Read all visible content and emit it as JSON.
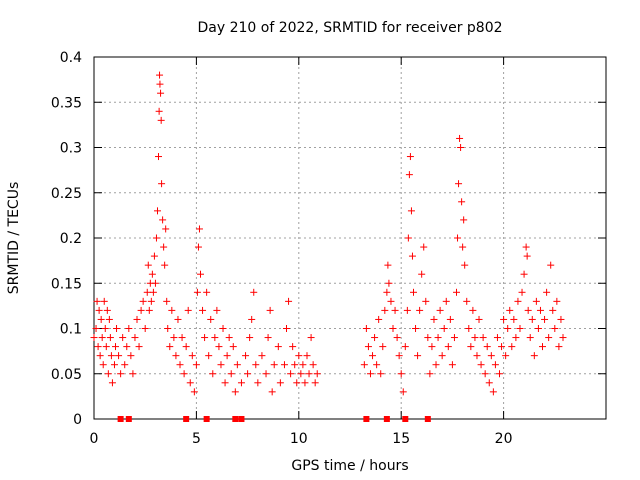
{
  "chart_data": {
    "type": "scatter",
    "title": "Day 210 of 2022, SRMTID for receiver p802",
    "xlabel": "GPS time / hours",
    "ylabel": "SRMTID / TECUs",
    "xlim": [
      0,
      25
    ],
    "ylim": [
      0,
      0.4
    ],
    "grid": true,
    "x_ticks": [
      0,
      5,
      10,
      15,
      20
    ],
    "y_ticks": [
      0,
      0.05,
      0.1,
      0.15,
      0.2,
      0.25,
      0.3,
      0.35,
      0.4
    ],
    "x_tick_labels": [
      "0",
      "5",
      "10",
      "15",
      "20"
    ],
    "y_tick_labels": [
      "0",
      "0.05",
      "0.1",
      "0.15",
      "0.2",
      "0.25",
      "0.3",
      "0.35",
      "0.4"
    ],
    "marker": "+",
    "color": "#ff0000",
    "zero_markers": [
      1.3,
      1.7,
      4.5,
      5.5,
      6.9,
      7.2,
      13.3,
      14.3,
      15.2,
      16.3
    ],
    "series": [
      {
        "name": "SRMTID",
        "points": [
          [
            0.0,
            0.09
          ],
          [
            0.1,
            0.1
          ],
          [
            0.15,
            0.13
          ],
          [
            0.2,
            0.08
          ],
          [
            0.25,
            0.12
          ],
          [
            0.3,
            0.07
          ],
          [
            0.35,
            0.11
          ],
          [
            0.4,
            0.09
          ],
          [
            0.45,
            0.06
          ],
          [
            0.5,
            0.13
          ],
          [
            0.55,
            0.1
          ],
          [
            0.6,
            0.08
          ],
          [
            0.65,
            0.12
          ],
          [
            0.7,
            0.05
          ],
          [
            0.75,
            0.11
          ],
          [
            0.8,
            0.09
          ],
          [
            0.85,
            0.07
          ],
          [
            0.9,
            0.04
          ],
          [
            1.0,
            0.06
          ],
          [
            1.05,
            0.08
          ],
          [
            1.1,
            0.1
          ],
          [
            1.2,
            0.07
          ],
          [
            1.3,
            0.05
          ],
          [
            1.4,
            0.09
          ],
          [
            1.5,
            0.06
          ],
          [
            1.6,
            0.08
          ],
          [
            1.7,
            0.1
          ],
          [
            1.8,
            0.07
          ],
          [
            1.9,
            0.05
          ],
          [
            2.0,
            0.09
          ],
          [
            2.1,
            0.11
          ],
          [
            2.2,
            0.08
          ],
          [
            2.3,
            0.12
          ],
          [
            2.4,
            0.13
          ],
          [
            2.5,
            0.1
          ],
          [
            2.6,
            0.14
          ],
          [
            2.65,
            0.17
          ],
          [
            2.7,
            0.12
          ],
          [
            2.75,
            0.15
          ],
          [
            2.8,
            0.13
          ],
          [
            2.85,
            0.16
          ],
          [
            2.9,
            0.14
          ],
          [
            2.95,
            0.18
          ],
          [
            3.0,
            0.15
          ],
          [
            3.05,
            0.2
          ],
          [
            3.1,
            0.23
          ],
          [
            3.15,
            0.29
          ],
          [
            3.18,
            0.34
          ],
          [
            3.2,
            0.38
          ],
          [
            3.22,
            0.37
          ],
          [
            3.25,
            0.36
          ],
          [
            3.28,
            0.33
          ],
          [
            3.3,
            0.26
          ],
          [
            3.35,
            0.22
          ],
          [
            3.4,
            0.19
          ],
          [
            3.45,
            0.17
          ],
          [
            3.5,
            0.21
          ],
          [
            3.55,
            0.13
          ],
          [
            3.6,
            0.1
          ],
          [
            3.7,
            0.08
          ],
          [
            3.8,
            0.12
          ],
          [
            3.9,
            0.09
          ],
          [
            4.0,
            0.07
          ],
          [
            4.1,
            0.11
          ],
          [
            4.2,
            0.06
          ],
          [
            4.3,
            0.09
          ],
          [
            4.4,
            0.05
          ],
          [
            4.5,
            0.08
          ],
          [
            4.6,
            0.12
          ],
          [
            4.7,
            0.04
          ],
          [
            4.8,
            0.07
          ],
          [
            4.9,
            0.03
          ],
          [
            5.0,
            0.06
          ],
          [
            5.05,
            0.14
          ],
          [
            5.1,
            0.19
          ],
          [
            5.15,
            0.21
          ],
          [
            5.2,
            0.16
          ],
          [
            5.3,
            0.12
          ],
          [
            5.4,
            0.09
          ],
          [
            5.5,
            0.14
          ],
          [
            5.6,
            0.07
          ],
          [
            5.7,
            0.11
          ],
          [
            5.8,
            0.05
          ],
          [
            5.9,
            0.09
          ],
          [
            6.0,
            0.12
          ],
          [
            6.1,
            0.08
          ],
          [
            6.2,
            0.06
          ],
          [
            6.3,
            0.1
          ],
          [
            6.4,
            0.04
          ],
          [
            6.5,
            0.07
          ],
          [
            6.6,
            0.09
          ],
          [
            6.7,
            0.05
          ],
          [
            6.8,
            0.08
          ],
          [
            6.9,
            0.03
          ],
          [
            7.0,
            0.06
          ],
          [
            7.2,
            0.04
          ],
          [
            7.4,
            0.07
          ],
          [
            7.5,
            0.05
          ],
          [
            7.6,
            0.09
          ],
          [
            7.7,
            0.11
          ],
          [
            7.8,
            0.14
          ],
          [
            7.9,
            0.06
          ],
          [
            8.0,
            0.04
          ],
          [
            8.2,
            0.07
          ],
          [
            8.4,
            0.05
          ],
          [
            8.5,
            0.09
          ],
          [
            8.6,
            0.12
          ],
          [
            8.7,
            0.03
          ],
          [
            8.8,
            0.06
          ],
          [
            9.0,
            0.08
          ],
          [
            9.1,
            0.04
          ],
          [
            9.3,
            0.06
          ],
          [
            9.4,
            0.1
          ],
          [
            9.5,
            0.13
          ],
          [
            9.6,
            0.05
          ],
          [
            9.7,
            0.08
          ],
          [
            9.8,
            0.06
          ],
          [
            9.9,
            0.04
          ],
          [
            10.0,
            0.07
          ],
          [
            10.1,
            0.05
          ],
          [
            10.2,
            0.06
          ],
          [
            10.3,
            0.04
          ],
          [
            10.4,
            0.07
          ],
          [
            10.5,
            0.05
          ],
          [
            10.6,
            0.09
          ],
          [
            10.7,
            0.06
          ],
          [
            10.8,
            0.04
          ],
          [
            10.9,
            0.05
          ],
          [
            13.2,
            0.06
          ],
          [
            13.3,
            0.1
          ],
          [
            13.4,
            0.08
          ],
          [
            13.5,
            0.05
          ],
          [
            13.6,
            0.07
          ],
          [
            13.7,
            0.09
          ],
          [
            13.8,
            0.06
          ],
          [
            13.9,
            0.11
          ],
          [
            14.0,
            0.05
          ],
          [
            14.1,
            0.08
          ],
          [
            14.2,
            0.12
          ],
          [
            14.3,
            0.14
          ],
          [
            14.35,
            0.17
          ],
          [
            14.4,
            0.15
          ],
          [
            14.5,
            0.13
          ],
          [
            14.6,
            0.1
          ],
          [
            14.7,
            0.12
          ],
          [
            14.8,
            0.09
          ],
          [
            14.9,
            0.07
          ],
          [
            15.0,
            0.05
          ],
          [
            15.1,
            0.03
          ],
          [
            15.2,
            0.08
          ],
          [
            15.3,
            0.12
          ],
          [
            15.35,
            0.2
          ],
          [
            15.4,
            0.27
          ],
          [
            15.45,
            0.29
          ],
          [
            15.5,
            0.23
          ],
          [
            15.55,
            0.18
          ],
          [
            15.6,
            0.14
          ],
          [
            15.7,
            0.1
          ],
          [
            15.8,
            0.07
          ],
          [
            15.9,
            0.12
          ],
          [
            16.0,
            0.16
          ],
          [
            16.1,
            0.19
          ],
          [
            16.2,
            0.13
          ],
          [
            16.3,
            0.09
          ],
          [
            16.4,
            0.05
          ],
          [
            16.5,
            0.08
          ],
          [
            16.6,
            0.11
          ],
          [
            16.7,
            0.06
          ],
          [
            16.8,
            0.09
          ],
          [
            16.9,
            0.12
          ],
          [
            17.0,
            0.07
          ],
          [
            17.1,
            0.1
          ],
          [
            17.2,
            0.13
          ],
          [
            17.3,
            0.08
          ],
          [
            17.4,
            0.11
          ],
          [
            17.5,
            0.06
          ],
          [
            17.6,
            0.09
          ],
          [
            17.7,
            0.14
          ],
          [
            17.75,
            0.2
          ],
          [
            17.8,
            0.26
          ],
          [
            17.85,
            0.31
          ],
          [
            17.9,
            0.3
          ],
          [
            17.95,
            0.24
          ],
          [
            18.0,
            0.19
          ],
          [
            18.05,
            0.22
          ],
          [
            18.1,
            0.17
          ],
          [
            18.2,
            0.13
          ],
          [
            18.3,
            0.1
          ],
          [
            18.4,
            0.08
          ],
          [
            18.5,
            0.12
          ],
          [
            18.6,
            0.09
          ],
          [
            18.7,
            0.07
          ],
          [
            18.8,
            0.11
          ],
          [
            18.9,
            0.06
          ],
          [
            19.0,
            0.09
          ],
          [
            19.1,
            0.05
          ],
          [
            19.2,
            0.08
          ],
          [
            19.3,
            0.04
          ],
          [
            19.4,
            0.07
          ],
          [
            19.5,
            0.03
          ],
          [
            19.6,
            0.06
          ],
          [
            19.7,
            0.09
          ],
          [
            19.8,
            0.05
          ],
          [
            19.9,
            0.08
          ],
          [
            20.0,
            0.11
          ],
          [
            20.1,
            0.07
          ],
          [
            20.2,
            0.1
          ],
          [
            20.3,
            0.12
          ],
          [
            20.4,
            0.08
          ],
          [
            20.5,
            0.11
          ],
          [
            20.6,
            0.09
          ],
          [
            20.7,
            0.13
          ],
          [
            20.8,
            0.1
          ],
          [
            20.9,
            0.14
          ],
          [
            21.0,
            0.16
          ],
          [
            21.1,
            0.19
          ],
          [
            21.15,
            0.18
          ],
          [
            21.2,
            0.12
          ],
          [
            21.3,
            0.09
          ],
          [
            21.4,
            0.11
          ],
          [
            21.5,
            0.07
          ],
          [
            21.6,
            0.13
          ],
          [
            21.7,
            0.1
          ],
          [
            21.8,
            0.12
          ],
          [
            21.9,
            0.08
          ],
          [
            22.0,
            0.11
          ],
          [
            22.1,
            0.14
          ],
          [
            22.2,
            0.09
          ],
          [
            22.3,
            0.17
          ],
          [
            22.4,
            0.12
          ],
          [
            22.5,
            0.1
          ],
          [
            22.6,
            0.13
          ],
          [
            22.7,
            0.08
          ],
          [
            22.8,
            0.11
          ],
          [
            22.9,
            0.09
          ]
        ]
      }
    ]
  }
}
